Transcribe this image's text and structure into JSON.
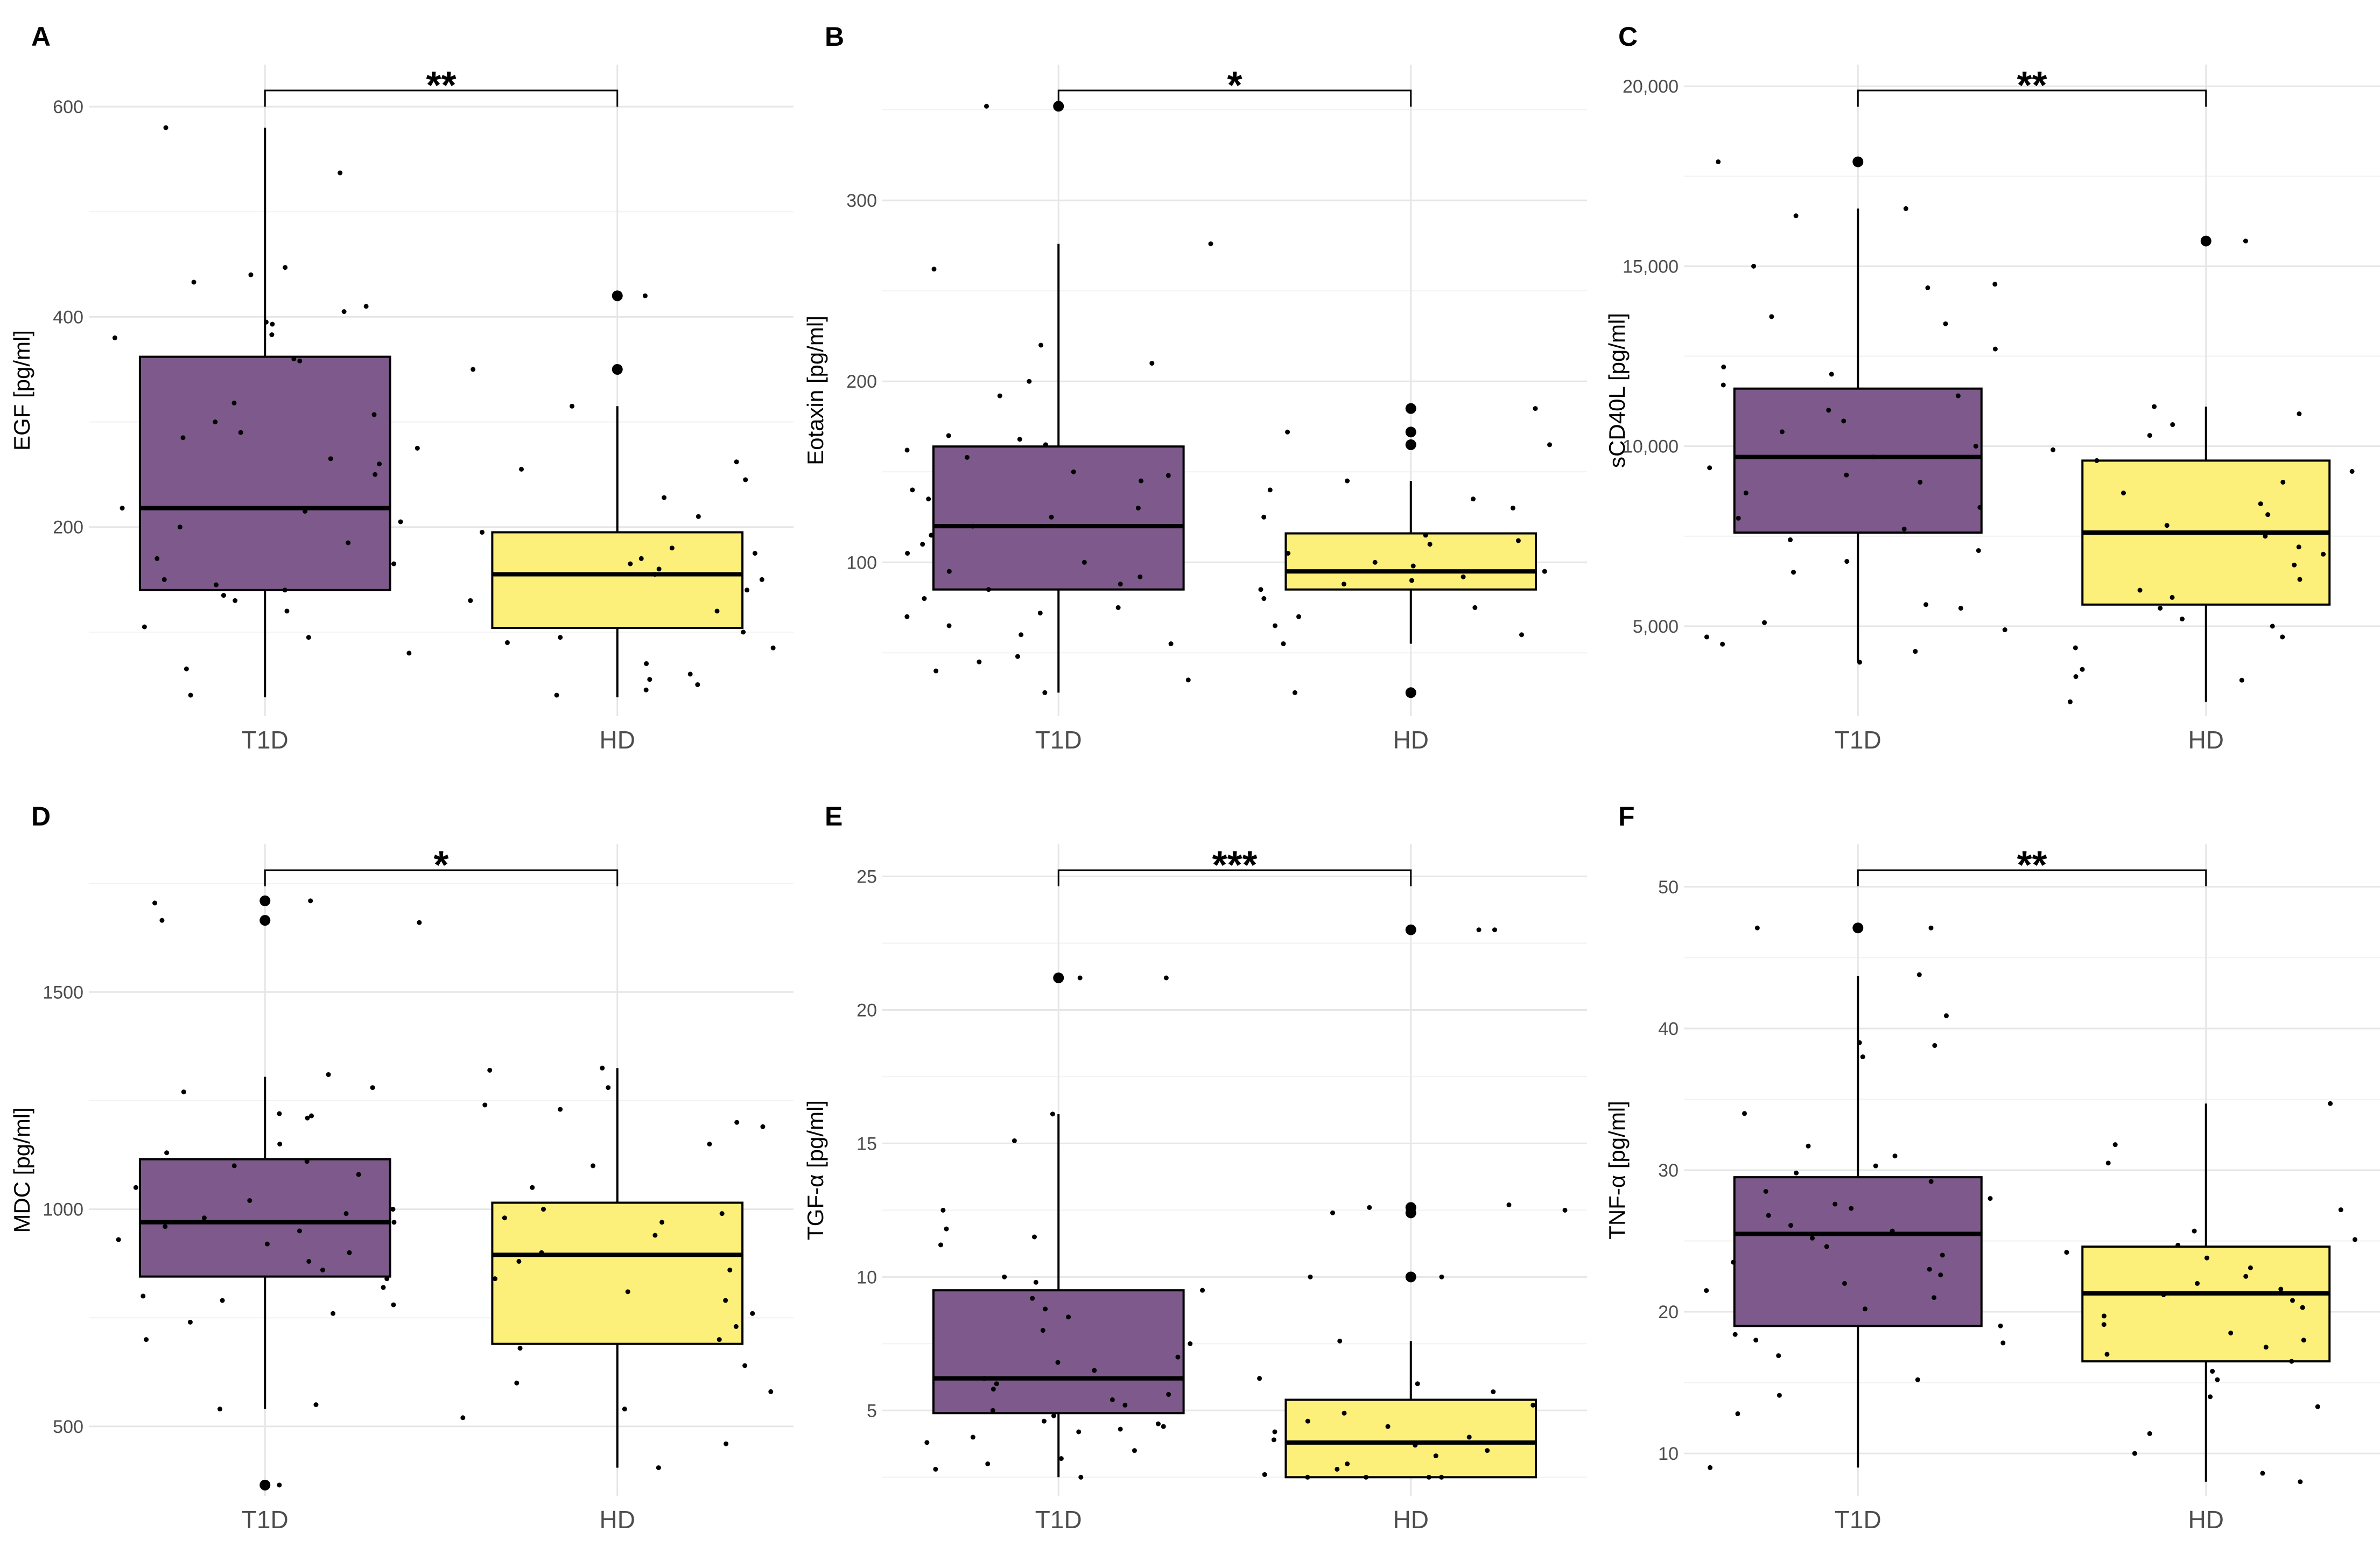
{
  "colors": {
    "T1D": "#7E5A8C",
    "HD": "#FCF07A",
    "line": "#000000",
    "grid": "#e6e6e6"
  },
  "chart_data": [
    {
      "panel": "A",
      "type": "box",
      "ylabel": "EGF [pg/ml]",
      "categories": [
        "T1D",
        "HD"
      ],
      "ylim": [
        20,
        640
      ],
      "yticks": [
        200,
        400,
        600
      ],
      "ytick_labels": [
        "200",
        "400",
        "600"
      ],
      "significance": "**",
      "boxes": [
        {
          "group": "T1D",
          "min": 38,
          "q1": 140,
          "median": 218,
          "q3": 362,
          "max": 580,
          "outliers": []
        },
        {
          "group": "HD",
          "min": 38,
          "q1": 104,
          "median": 155,
          "q3": 195,
          "max": 315,
          "outliers": [
            420,
            350
          ]
        }
      ],
      "points": {
        "T1D": [
          580,
          537,
          447,
          440,
          433,
          410,
          405,
          395,
          393,
          383,
          380,
          360,
          358,
          318,
          307,
          300,
          290,
          285,
          275,
          265,
          260,
          250,
          218,
          215,
          205,
          200,
          185,
          170,
          165,
          150,
          145,
          140,
          135,
          130,
          120,
          105,
          95,
          80,
          65,
          40
        ],
        "HD": [
          420,
          350,
          315,
          262,
          255,
          245,
          228,
          210,
          195,
          180,
          175,
          170,
          165,
          160,
          155,
          150,
          140,
          130,
          120,
          100,
          95,
          90,
          85,
          70,
          60,
          55,
          50,
          45,
          40
        ]
      }
    },
    {
      "panel": "B",
      "type": "box",
      "ylabel": "Eotaxin [pg/ml]",
      "categories": [
        "T1D",
        "HD"
      ],
      "ylim": [
        15,
        375
      ],
      "yticks": [
        100,
        200,
        300
      ],
      "ytick_labels": [
        "100",
        "200",
        "300"
      ],
      "significance": "*",
      "boxes": [
        {
          "group": "T1D",
          "min": 28,
          "q1": 85,
          "median": 120,
          "q3": 164,
          "max": 276,
          "outliers": [
            352
          ]
        },
        {
          "group": "HD",
          "min": 55,
          "q1": 85,
          "median": 95,
          "q3": 116,
          "max": 145,
          "outliers": [
            185,
            172,
            165,
            28
          ]
        }
      ],
      "points": {
        "T1D": [
          352,
          276,
          262,
          220,
          210,
          200,
          192,
          170,
          168,
          165,
          162,
          158,
          150,
          148,
          145,
          140,
          135,
          130,
          125,
          120,
          115,
          110,
          105,
          100,
          95,
          92,
          88,
          85,
          80,
          75,
          72,
          70,
          65,
          60,
          55,
          48,
          45,
          40,
          35,
          28
        ],
        "HD": [
          185,
          172,
          165,
          145,
          140,
          135,
          130,
          125,
          115,
          112,
          110,
          105,
          100,
          98,
          95,
          92,
          90,
          88,
          85,
          80,
          75,
          70,
          65,
          60,
          55,
          28
        ]
      }
    },
    {
      "panel": "C",
      "type": "box",
      "ylabel": "sCD40L [pg/ml]",
      "categories": [
        "T1D",
        "HD"
      ],
      "ylim": [
        2500,
        20600
      ],
      "yticks": [
        5000,
        10000,
        15000,
        20000
      ],
      "ytick_labels": [
        "5,000",
        "10,000",
        "15,000",
        "20,000"
      ],
      "significance": "**",
      "boxes": [
        {
          "group": "T1D",
          "min": 4000,
          "q1": 7600,
          "median": 9700,
          "q3": 11600,
          "max": 16600,
          "outliers": [
            17900
          ]
        },
        {
          "group": "HD",
          "min": 2900,
          "q1": 5600,
          "median": 7600,
          "q3": 9600,
          "max": 11100,
          "outliers": [
            15700
          ]
        }
      ],
      "points": {
        "T1D": [
          17900,
          16600,
          16400,
          15000,
          14500,
          14400,
          13600,
          13400,
          12700,
          12200,
          12000,
          11700,
          11400,
          11000,
          10700,
          10400,
          10000,
          9700,
          9400,
          9200,
          9000,
          8700,
          8300,
          8000,
          7700,
          7400,
          7100,
          6800,
          6500,
          5600,
          5500,
          5100,
          4900,
          4700,
          4500,
          4300,
          4000
        ],
        "HD": [
          15700,
          11100,
          10900,
          10600,
          10300,
          9900,
          9600,
          9300,
          9000,
          8700,
          8400,
          8100,
          7800,
          7500,
          7200,
          7000,
          6700,
          6300,
          6000,
          5800,
          5500,
          5200,
          5000,
          4700,
          4400,
          3800,
          3600,
          3500,
          2900
        ]
      }
    },
    {
      "panel": "D",
      "type": "box",
      "ylabel": "MDC [pg/ml]",
      "categories": [
        "T1D",
        "HD"
      ],
      "ylim": [
        340,
        1840
      ],
      "yticks": [
        500,
        1000,
        1500
      ],
      "ytick_labels": [
        "500",
        "1000",
        "1500"
      ],
      "significance": "*",
      "boxes": [
        {
          "group": "T1D",
          "min": 540,
          "q1": 845,
          "median": 970,
          "q3": 1115,
          "max": 1305,
          "outliers": [
            1710,
            1665,
            365
          ]
        },
        {
          "group": "HD",
          "min": 405,
          "q1": 690,
          "median": 895,
          "q3": 1015,
          "max": 1325,
          "outliers": []
        }
      ],
      "points": {
        "T1D": [
          1710,
          1705,
          1665,
          1660,
          1310,
          1280,
          1270,
          1220,
          1215,
          1210,
          1150,
          1130,
          1110,
          1100,
          1080,
          1050,
          1020,
          1000,
          990,
          980,
          970,
          960,
          950,
          930,
          920,
          900,
          880,
          860,
          840,
          820,
          800,
          790,
          780,
          760,
          740,
          700,
          550,
          540,
          365
        ],
        "HD": [
          1325,
          1320,
          1280,
          1240,
          1230,
          1200,
          1190,
          1150,
          1100,
          1050,
          1000,
          990,
          980,
          970,
          940,
          900,
          880,
          860,
          840,
          810,
          790,
          760,
          730,
          700,
          680,
          640,
          600,
          580,
          540,
          520,
          460,
          405
        ]
      }
    },
    {
      "panel": "E",
      "type": "box",
      "ylabel": "TGF-α [pg/ml]",
      "categories": [
        "T1D",
        "HD"
      ],
      "ylim": [
        1.8,
        26.2
      ],
      "yticks": [
        5,
        10,
        15,
        20,
        25
      ],
      "ytick_labels": [
        "5",
        "10",
        "15",
        "20",
        "25"
      ],
      "significance": "***",
      "boxes": [
        {
          "group": "T1D",
          "min": 2.5,
          "q1": 4.9,
          "median": 6.2,
          "q3": 9.5,
          "max": 16.1,
          "outliers": [
            21.2
          ]
        },
        {
          "group": "HD",
          "min": 2.5,
          "q1": 2.5,
          "median": 3.8,
          "q3": 5.4,
          "max": 7.6,
          "outliers": [
            23.0,
            12.6,
            12.4,
            10.0
          ]
        }
      ],
      "points": {
        "T1D": [
          21.2,
          21.2,
          16.1,
          15.1,
          12.5,
          11.8,
          11.5,
          11.2,
          10.0,
          9.8,
          9.5,
          9.2,
          8.8,
          8.5,
          8.0,
          7.5,
          7.0,
          6.8,
          6.5,
          6.2,
          6.0,
          5.8,
          5.6,
          5.4,
          5.2,
          5.0,
          4.8,
          4.6,
          4.5,
          4.4,
          4.3,
          4.2,
          4.0,
          3.8,
          3.5,
          3.2,
          3.0,
          2.8,
          2.5
        ],
        "HD": [
          23.0,
          23.0,
          12.7,
          12.6,
          12.5,
          12.4,
          10.0,
          10.0,
          7.6,
          6.2,
          6.0,
          5.7,
          5.2,
          4.9,
          4.6,
          4.4,
          4.2,
          4.0,
          3.9,
          3.7,
          3.5,
          3.3,
          3.0,
          2.8,
          2.6,
          2.5,
          2.5,
          2.5,
          2.5
        ]
      }
    },
    {
      "panel": "F",
      "type": "box",
      "ylabel": "TNF-α [pg/ml]",
      "categories": [
        "T1D",
        "HD"
      ],
      "ylim": [
        7,
        53
      ],
      "yticks": [
        10,
        20,
        30,
        40,
        50
      ],
      "ytick_labels": [
        "10",
        "20",
        "30",
        "40",
        "50"
      ],
      "significance": "**",
      "boxes": [
        {
          "group": "T1D",
          "min": 9,
          "q1": 19,
          "median": 25.5,
          "q3": 29.5,
          "max": 43.7,
          "outliers": [
            47.1
          ]
        },
        {
          "group": "HD",
          "min": 8,
          "q1": 16.5,
          "median": 21.3,
          "q3": 24.6,
          "max": 34.7,
          "outliers": []
        }
      ],
      "points": {
        "T1D": [
          47.1,
          47.1,
          43.8,
          40.9,
          39.0,
          38.8,
          38.0,
          34.0,
          31.7,
          31.0,
          30.3,
          29.8,
          29.2,
          28.5,
          28.0,
          27.6,
          27.3,
          26.8,
          26.1,
          25.7,
          25.2,
          24.6,
          24.0,
          23.5,
          23.0,
          22.6,
          22.0,
          21.5,
          21.0,
          20.2,
          19.0,
          18.4,
          18.0,
          17.8,
          16.9,
          15.2,
          14.1,
          12.8,
          9.0
        ],
        "HD": [
          34.7,
          31.8,
          30.5,
          27.2,
          25.7,
          25.1,
          24.7,
          24.2,
          23.8,
          23.1,
          22.5,
          22.0,
          21.6,
          21.2,
          20.8,
          20.3,
          19.7,
          19.1,
          18.5,
          18.0,
          17.5,
          17.0,
          16.5,
          15.8,
          15.2,
          14.0,
          13.3,
          11.4,
          10.0,
          8.6,
          8.0
        ]
      }
    }
  ]
}
